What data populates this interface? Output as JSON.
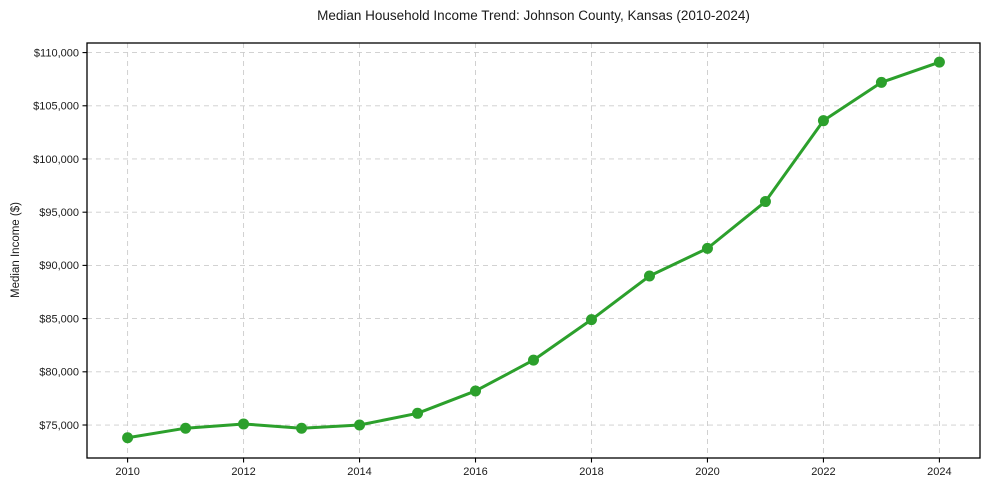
{
  "chart_data": {
    "type": "line",
    "title": "Median Household Income Trend: Johnson County, Kansas (2010-2024)",
    "xlabel": "",
    "ylabel": "Median Income ($)",
    "x": [
      2010,
      2011,
      2012,
      2013,
      2014,
      2015,
      2016,
      2017,
      2018,
      2019,
      2020,
      2021,
      2022,
      2023,
      2024
    ],
    "values": [
      73800,
      74700,
      75100,
      74700,
      75000,
      76100,
      78200,
      81100,
      84900,
      89000,
      91600,
      96000,
      103600,
      107200,
      109100
    ],
    "x_ticks": [
      2010,
      2012,
      2014,
      2016,
      2018,
      2020,
      2022,
      2024
    ],
    "x_tick_labels": [
      "2010",
      "2012",
      "2014",
      "2016",
      "2018",
      "2020",
      "2022",
      "2024"
    ],
    "y_ticks": [
      75000,
      80000,
      85000,
      90000,
      95000,
      100000,
      105000,
      110000
    ],
    "y_tick_labels": [
      "$75,000",
      "$80,000",
      "$85,000",
      "$90,000",
      "$95,000",
      "$100,000",
      "$105,000",
      "$110,000"
    ],
    "xlim": [
      2009.3,
      2024.7
    ],
    "ylim": [
      71900,
      110900
    ],
    "grid": true,
    "grid_style": "dashed",
    "legend": "none",
    "marker": "circle",
    "colors": {
      "line": "#2ca02c",
      "grid": "#cccccc",
      "axis": "#000000",
      "text": "#1a1a1a",
      "background": "#ffffff"
    }
  }
}
